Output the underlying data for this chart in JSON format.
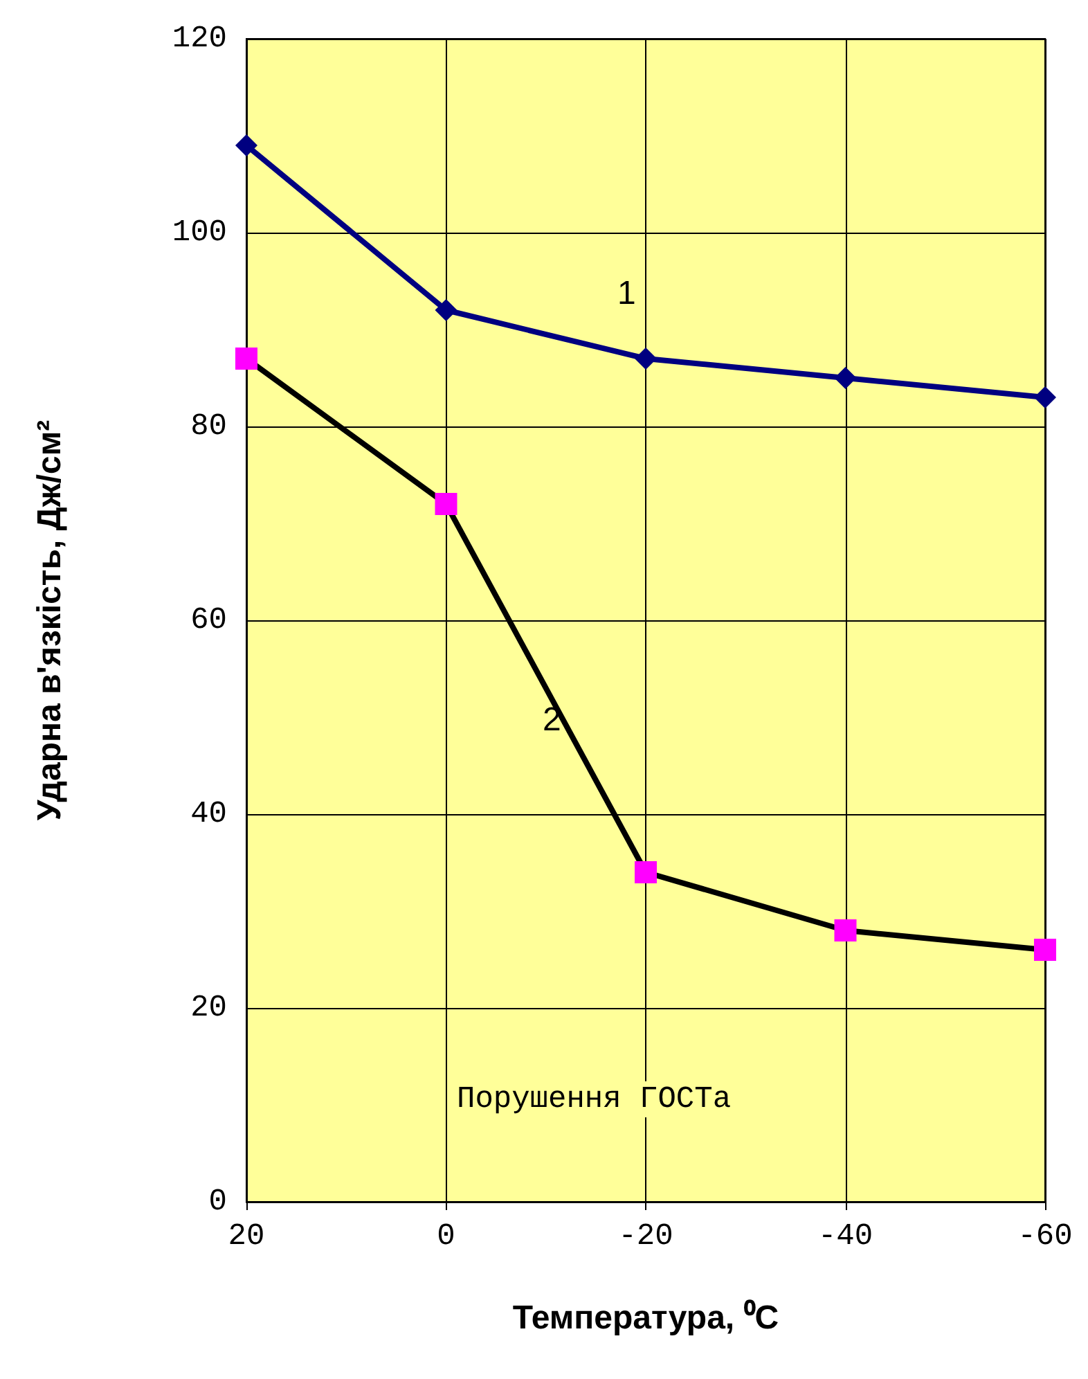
{
  "chart_data": {
    "type": "line",
    "xlabel": "Температура, ⁰C",
    "ylabel": "Ударна в'язкість, Дж/см²",
    "x": [
      20,
      0,
      -20,
      -40,
      -60
    ],
    "series": [
      {
        "color": "#000080",
        "marker": "diamond",
        "values": [
          109,
          92,
          87,
          85,
          83
        ]
      },
      {
        "color": "#000000",
        "colors": [
          "#ff00ff",
          "#ff00ff",
          "#ff00ff",
          "#ff00ff",
          "#ff00ff"
        ],
        "marker": "square",
        "values": [
          87,
          72,
          34,
          28,
          26
        ]
      }
    ],
    "xlim": [
      20,
      -60
    ],
    "xticks": [
      20,
      0,
      -20,
      -40,
      -60
    ],
    "ylim": [
      0,
      120
    ],
    "yticks": [
      0,
      20,
      40,
      60,
      80,
      100,
      120
    ],
    "grid": true,
    "annotations": [
      "1",
      "2",
      "Порушення ГОСТа"
    ]
  }
}
